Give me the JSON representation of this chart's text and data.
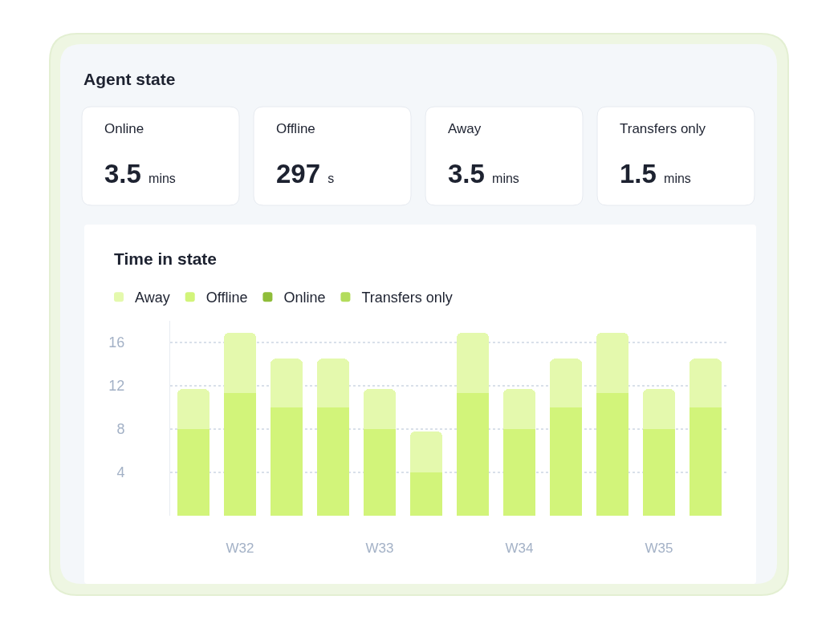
{
  "chart_data": [
    {
      "type": "other",
      "title": "Agent state",
      "categories": [
        "Online",
        "Offline",
        "Away",
        "Transfers only"
      ],
      "annotations": [
        "3.5 mins",
        "297 s",
        "3.5 mins",
        "1.5 mins"
      ]
    },
    {
      "type": "bar",
      "title": "Time in state",
      "categories": [
        null,
        "W32",
        null,
        null,
        "W33",
        null,
        null,
        "W34",
        null,
        null,
        "W35",
        null
      ],
      "stacked": true,
      "series": [
        {
          "name": "Transfers only",
          "color": "#b3dc5c",
          "values": [
            null,
            null,
            null,
            null,
            null,
            null,
            null,
            null,
            null,
            null,
            null,
            null
          ]
        },
        {
          "name": "Online",
          "color": "#8fbd3a",
          "values": [
            null,
            null,
            null,
            null,
            null,
            null,
            null,
            null,
            null,
            null,
            null,
            null
          ]
        },
        {
          "name": "Offline",
          "color": "#d2f47a",
          "values": [
            8,
            11.3,
            10,
            10,
            8,
            4,
            11.3,
            8,
            10,
            11.3,
            8,
            10
          ]
        },
        {
          "name": "Away",
          "color": "#e4f9ad",
          "values": [
            3.7,
            5.6,
            4.5,
            4.5,
            3.7,
            3.8,
            5.6,
            3.7,
            4.5,
            5.6,
            3.7,
            4.5
          ]
        }
      ],
      "ylim": [
        0,
        18
      ],
      "yticks": [
        4,
        8,
        12,
        16
      ],
      "grid": "y",
      "legend": "top left"
    }
  ]
}
